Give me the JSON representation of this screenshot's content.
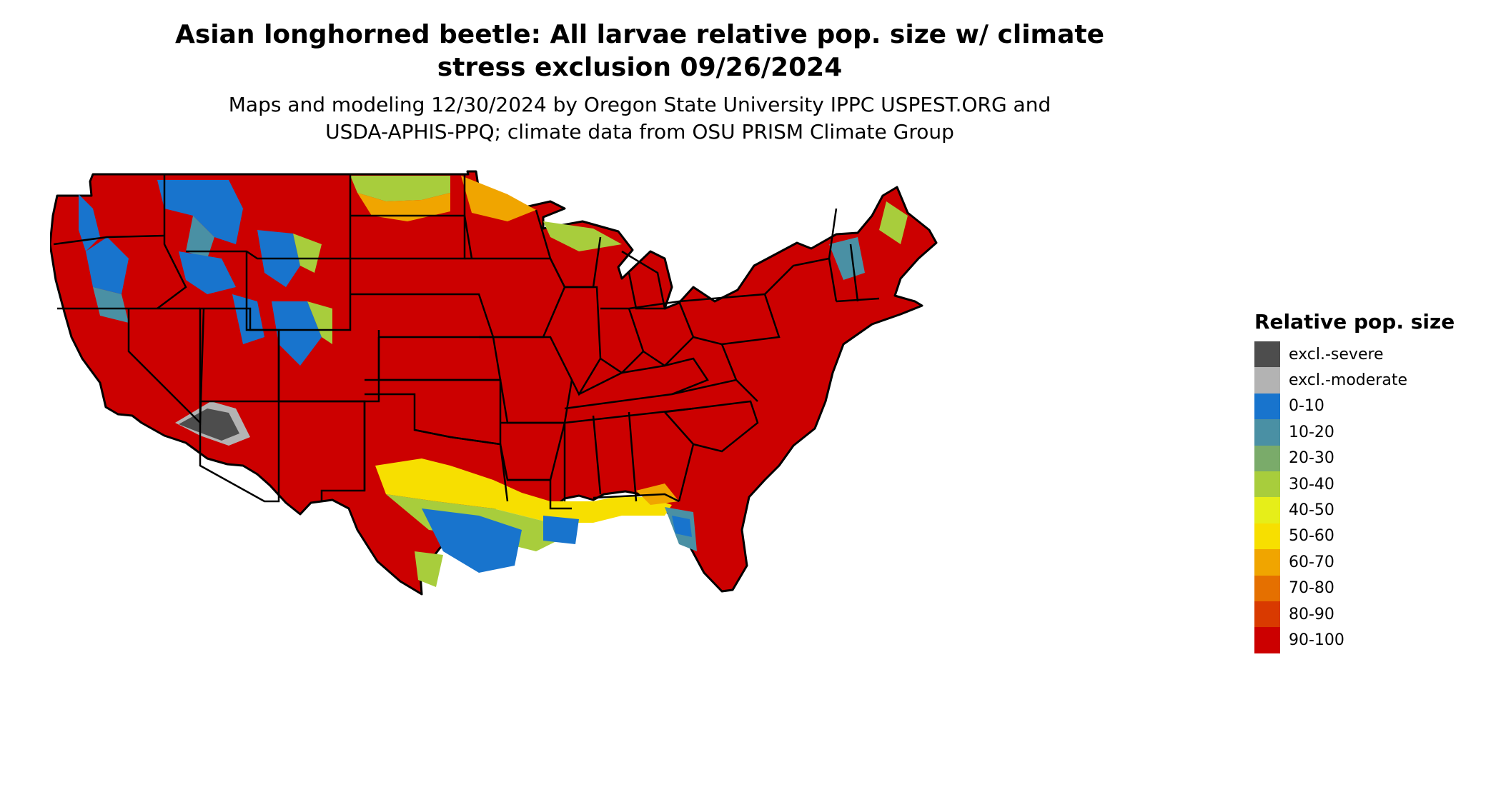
{
  "title_line1": "Asian longhorned beetle: All larvae relative pop. size w/ climate",
  "title_line2": "stress exclusion 09/26/2024",
  "subtitle_line1": "Maps and modeling 12/30/2024 by Oregon State University IPPC USPEST.ORG and",
  "subtitle_line2": "USDA-APHIS-PPQ; climate data from OSU PRISM Climate Group",
  "legend": {
    "title": "Relative pop. size",
    "items": [
      {
        "label": "excl.-severe",
        "color": "#4d4d4d"
      },
      {
        "label": "excl.-moderate",
        "color": "#b3b3b3"
      },
      {
        "label": "0-10",
        "color": "#1874cd"
      },
      {
        "label": "10-20",
        "color": "#4a90a4"
      },
      {
        "label": "20-30",
        "color": "#7aab6a"
      },
      {
        "label": "30-40",
        "color": "#a8cd3c"
      },
      {
        "label": "40-50",
        "color": "#e6ee19"
      },
      {
        "label": "50-60",
        "color": "#f7df00"
      },
      {
        "label": "60-70",
        "color": "#f0a500"
      },
      {
        "label": "70-80",
        "color": "#e57000"
      },
      {
        "label": "80-90",
        "color": "#d93a00"
      },
      {
        "label": "90-100",
        "color": "#cc0000"
      }
    ]
  }
}
